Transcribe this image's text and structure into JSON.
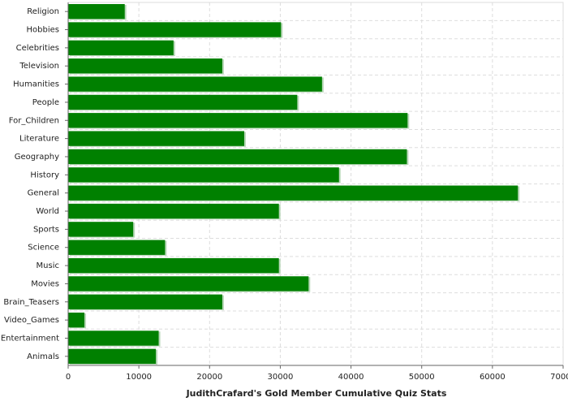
{
  "chart_data": {
    "type": "bar",
    "orientation": "horizontal",
    "x_label": "JudithCrafard's Gold Member Cumulative Quiz Stats",
    "categories": [
      "Religion",
      "Hobbies",
      "Celebrities",
      "Television",
      "Humanities",
      "People",
      "For_Children",
      "Literature",
      "Geography",
      "History",
      "General",
      "World",
      "Sports",
      "Science",
      "Music",
      "Movies",
      "Brain_Teasers",
      "Video_Games",
      "Entertainment",
      "Animals"
    ],
    "values": [
      8000,
      30100,
      14900,
      21800,
      35900,
      32400,
      48000,
      24900,
      47900,
      38300,
      63600,
      29800,
      9200,
      13700,
      29800,
      34000,
      21800,
      2300,
      12800,
      12400
    ],
    "color": "#008000",
    "xlim": [
      0,
      70000
    ],
    "xticks": [
      0,
      10000,
      20000,
      30000,
      40000,
      50000,
      60000,
      70000
    ],
    "grid": true
  }
}
